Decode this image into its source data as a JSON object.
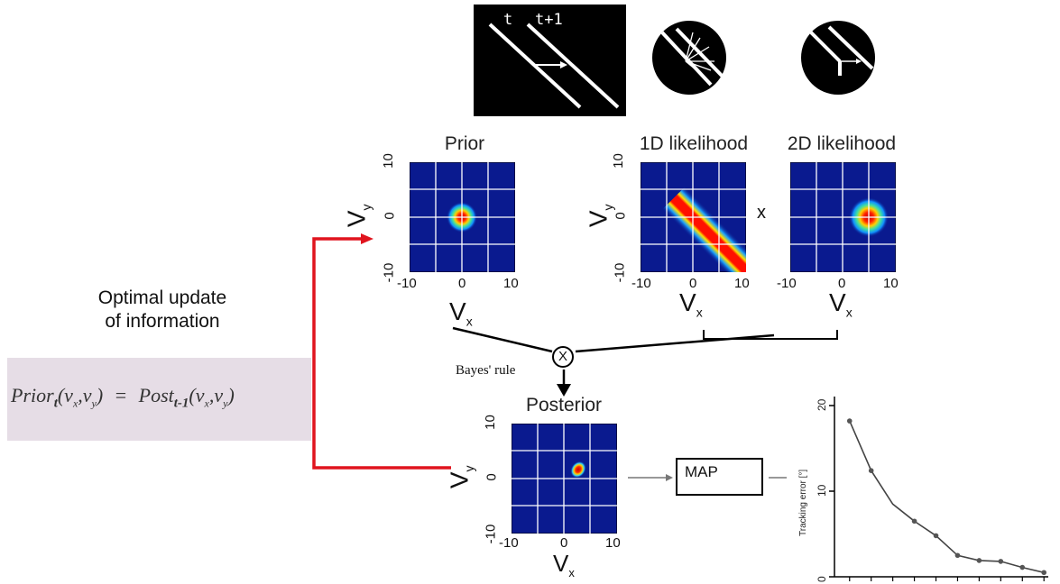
{
  "stimulus": {
    "label_t": "t",
    "label_t1": "t+1"
  },
  "prior": {
    "title": "Prior",
    "ylabel": "V",
    "ysub": "y",
    "xlabel": "V",
    "xsub": "x",
    "yticks": [
      "10",
      "0",
      "-10"
    ],
    "xticks": [
      "-10",
      "0",
      "10"
    ]
  },
  "likelihood1d": {
    "title": "1D likelihood",
    "ylabel": "V",
    "ysub": "y",
    "xlabel": "V",
    "xsub": "x",
    "yticks": [
      "10",
      "0",
      "-10"
    ],
    "xticks": [
      "-10",
      "0",
      "10"
    ]
  },
  "times": "x",
  "likelihood2d": {
    "title": "2D likelihood",
    "xlabel": "V",
    "xsub": "x",
    "xticks": [
      "-10",
      "0",
      "10"
    ]
  },
  "posterior": {
    "title": "Posterior",
    "ylabel": "V",
    "ysub": "y",
    "xlabel": "V",
    "xsub": "x",
    "yticks": [
      "10",
      "0",
      "-10"
    ],
    "xticks": [
      "-10",
      "0",
      "10"
    ]
  },
  "update": {
    "line1": "Optimal update",
    "line2": "of information"
  },
  "equation": {
    "lhs_main": "Prior",
    "lhs_sub": "t",
    "lhs_args": "(v",
    "lhs_vx": "x",
    "lhs_comma": ",v",
    "lhs_vy": "y",
    "lhs_close": ")",
    "eq": "=",
    "rhs_main": "Post",
    "rhs_sub": "t-1",
    "rhs_args": "(v",
    "rhs_vx": "x",
    "rhs_comma": ",v",
    "rhs_vy": "y",
    "rhs_close": ")"
  },
  "bayes": {
    "operator": "X",
    "label": "Bayes' rule"
  },
  "map": {
    "label": "MAP"
  },
  "chart_data": {
    "type": "line",
    "ylabel": "Tracking error [°]",
    "ylim": [
      0,
      20
    ],
    "yticks": [
      "0",
      "10",
      "20"
    ],
    "x": [
      1,
      2,
      3,
      4,
      5,
      6,
      7,
      8,
      9,
      10
    ],
    "values": [
      18.2,
      12.4,
      8.5,
      6.5,
      4.8,
      2.5,
      1.9,
      1.8,
      1.1,
      0.5
    ],
    "markers_at": [
      1,
      2,
      4,
      5,
      6,
      7,
      8,
      9,
      10
    ],
    "grid": false
  }
}
